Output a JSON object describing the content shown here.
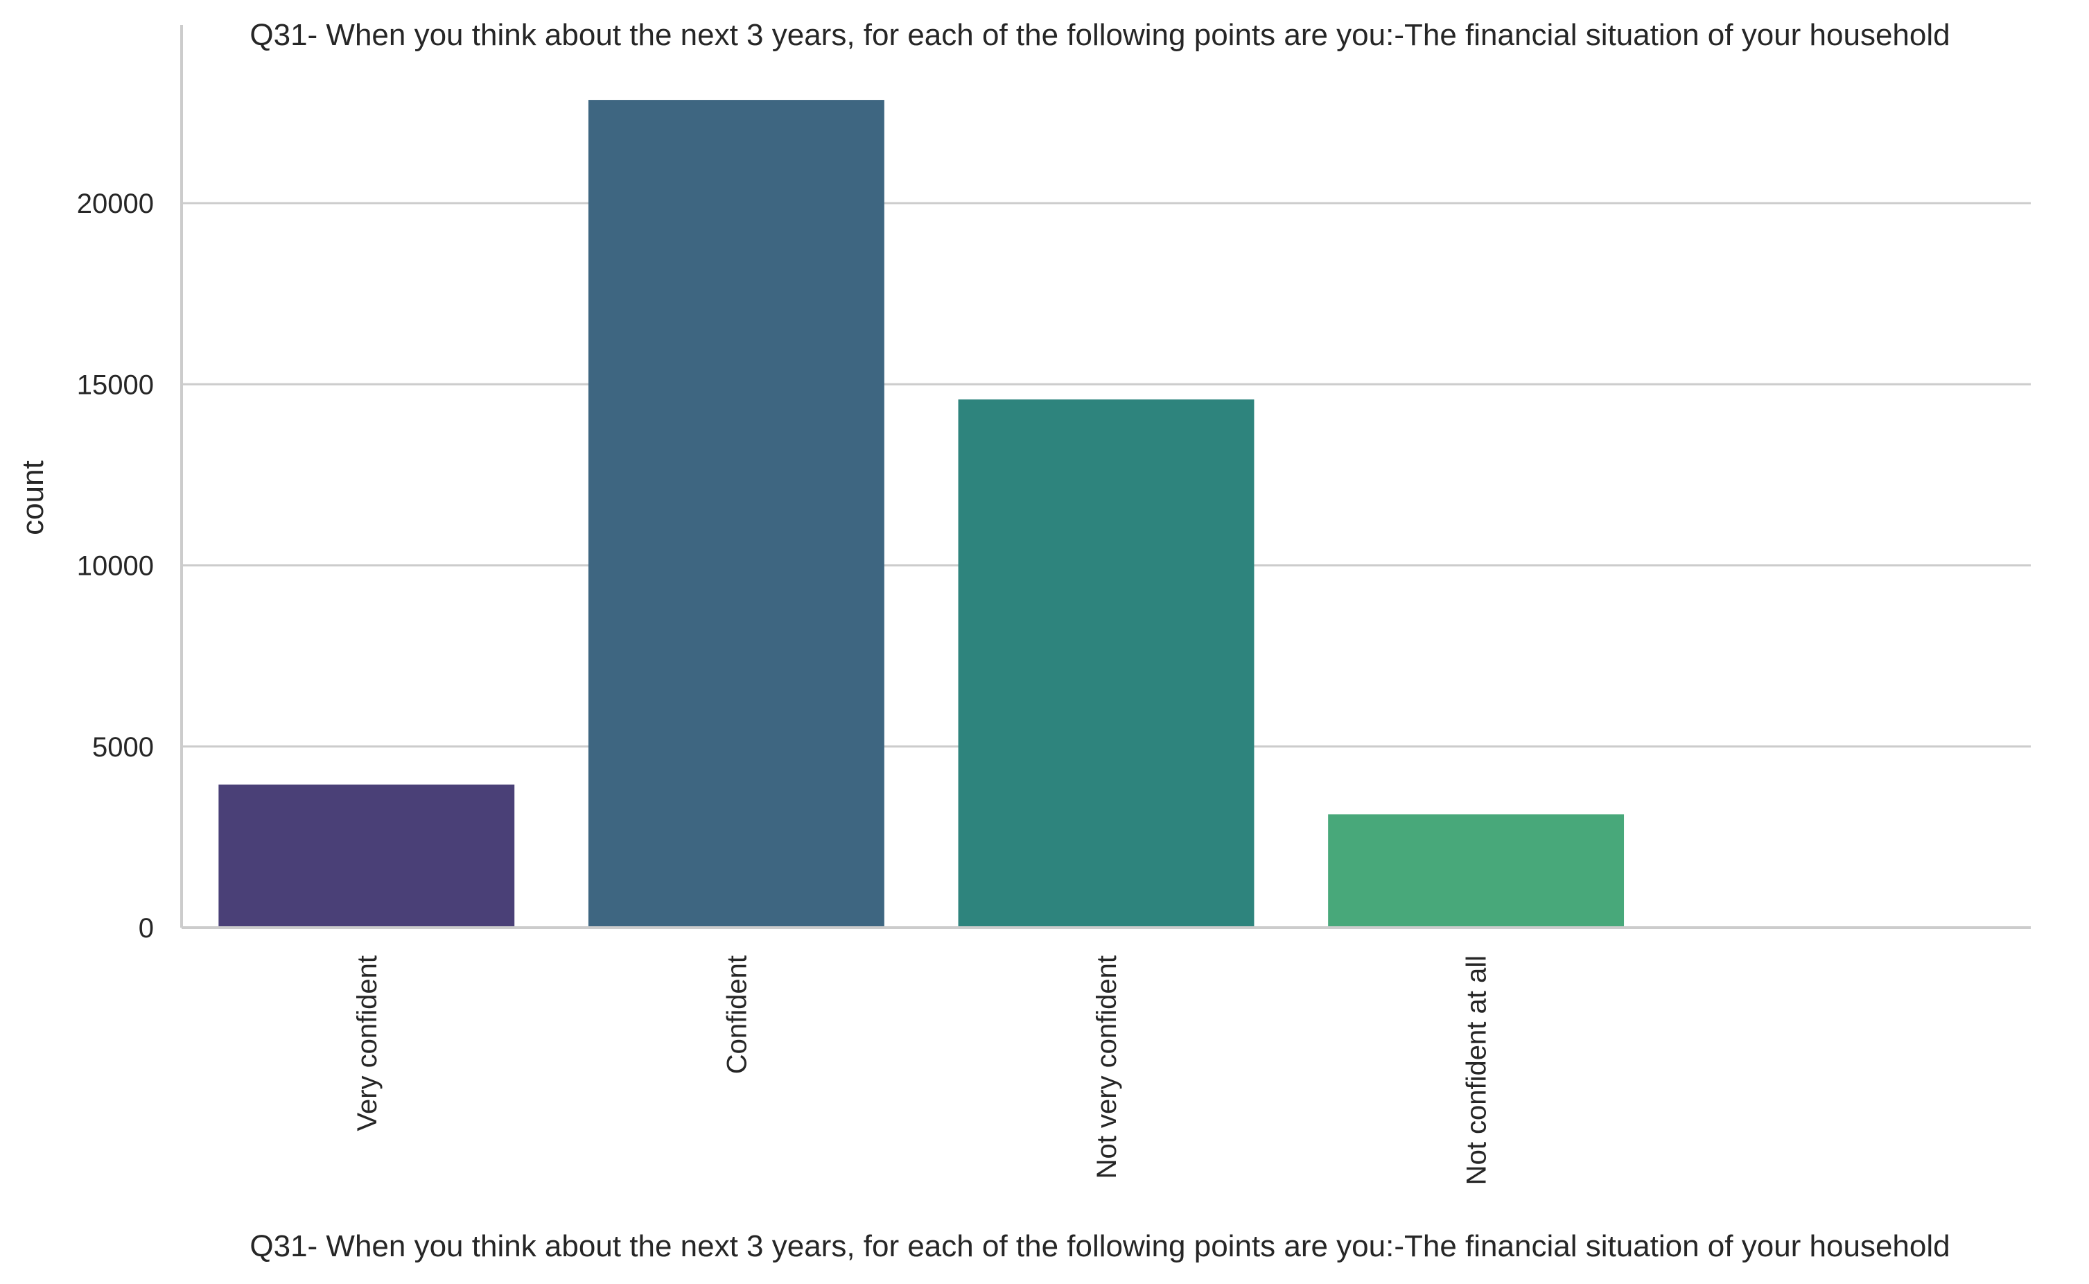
{
  "chart_data": {
    "type": "bar",
    "title": "Q31- When you think about the next 3 years, for each of the following points are you:-The financial situation of your household",
    "xlabel": "Q31- When you think about the next 3 years, for each of the following points are you:-The financial situation of your household",
    "ylabel": "count",
    "categories": [
      "Very confident",
      "Confident",
      "Not very confident",
      "Not confident at all",
      ""
    ],
    "values": [
      3950,
      22850,
      14580,
      3130,
      0
    ],
    "colors": [
      "#4a4077",
      "#3e6681",
      "#2e847d",
      "#48a87a",
      "#9fd46a"
    ],
    "yticks": [
      0,
      5000,
      10000,
      15000,
      20000
    ],
    "ytick_labels": [
      "0",
      "5000",
      "10000",
      "15000",
      "20000"
    ],
    "ylim": [
      0,
      24000
    ],
    "grid": "horizontal",
    "legend": "none"
  }
}
